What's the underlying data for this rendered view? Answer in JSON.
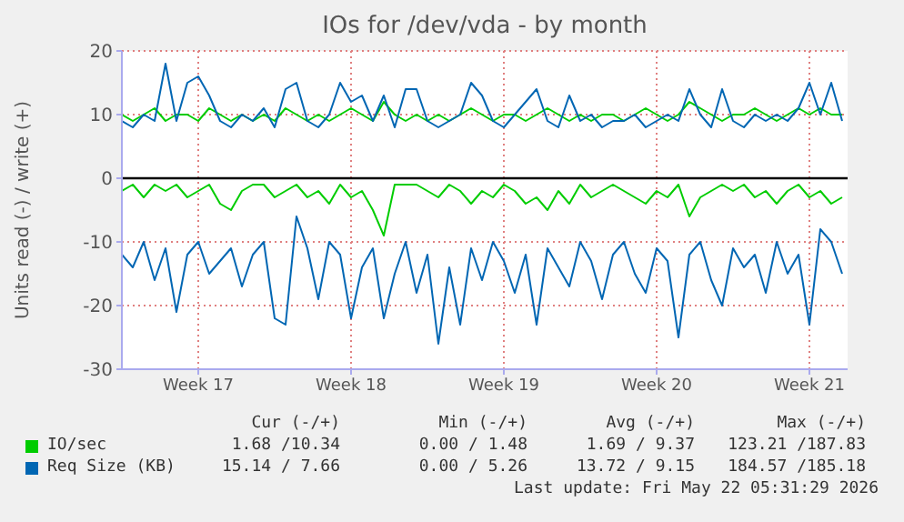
{
  "chart_data": {
    "type": "line",
    "title": "IOs for /dev/vda - by month",
    "ylabel": "Units read (-) / write (+)",
    "categories": [
      null,
      null,
      null,
      null,
      null,
      null,
      null,
      "Week 17",
      null,
      null,
      null,
      null,
      null,
      null,
      null,
      null,
      null,
      null,
      null,
      null,
      null,
      "Week 18",
      null,
      null,
      null,
      null,
      null,
      null,
      null,
      null,
      null,
      null,
      null,
      null,
      null,
      "Week 19",
      null,
      null,
      null,
      null,
      null,
      null,
      null,
      null,
      null,
      null,
      null,
      null,
      null,
      "Week 20",
      null,
      null,
      null,
      null,
      null,
      null,
      null,
      null,
      null,
      null,
      null,
      null,
      null,
      "Week 21",
      null,
      null,
      null
    ],
    "ylim": [
      -30,
      20
    ],
    "yticks": [
      -30,
      -20,
      -10,
      0,
      10,
      20
    ],
    "grid": true,
    "legend": "bottom",
    "marker": "none",
    "line_style": "solid",
    "ref_lines": [
      {
        "axis": "y",
        "value": 0,
        "color": "#000000"
      }
    ],
    "series": [
      {
        "name": "IO/sec",
        "color": "#00cc00",
        "values": [
          10,
          9,
          10,
          11,
          9,
          10,
          10,
          9,
          11,
          10,
          9,
          10,
          9,
          10,
          9,
          11,
          10,
          9,
          10,
          9,
          10,
          11,
          10,
          9,
          12,
          10,
          9,
          10,
          9,
          10,
          9,
          10,
          11,
          10,
          9,
          10,
          10,
          9,
          10,
          11,
          10,
          9,
          10,
          9,
          10,
          10,
          9,
          10,
          11,
          10,
          9,
          10,
          12,
          11,
          10,
          9,
          10,
          10,
          11,
          10,
          9,
          10,
          11,
          10,
          11,
          10,
          10
        ]
      },
      {
        "color": "#00cc00",
        "values": [
          -2,
          -1,
          -3,
          -1,
          -2,
          -1,
          -3,
          -2,
          -1,
          -4,
          -5,
          -2,
          -1,
          -1,
          -3,
          -2,
          -1,
          -3,
          -2,
          -4,
          -1,
          -3,
          -2,
          -5,
          -9,
          -1,
          -1,
          -1,
          -2,
          -3,
          -1,
          -2,
          -4,
          -2,
          -3,
          -1,
          -2,
          -4,
          -3,
          -5,
          -2,
          -4,
          -1,
          -3,
          -2,
          -1,
          -2,
          -3,
          -4,
          -2,
          -3,
          -1,
          -6,
          -3,
          -2,
          -1,
          -2,
          -1,
          -3,
          -2,
          -4,
          -2,
          -1,
          -3,
          -2,
          -4,
          -3
        ]
      },
      {
        "name": "Req Size (KB)",
        "color": "#0066b3",
        "values": [
          9,
          8,
          10,
          9,
          18,
          9,
          15,
          16,
          13,
          9,
          8,
          10,
          9,
          11,
          8,
          14,
          15,
          9,
          8,
          10,
          15,
          12,
          13,
          9,
          13,
          8,
          14,
          14,
          9,
          8,
          9,
          10,
          15,
          13,
          9,
          8,
          10,
          12,
          14,
          9,
          8,
          13,
          9,
          10,
          8,
          9,
          9,
          10,
          8,
          9,
          10,
          9,
          14,
          10,
          8,
          14,
          9,
          8,
          10,
          9,
          10,
          9,
          11,
          15,
          10,
          15,
          9
        ]
      },
      {
        "color": "#0066b3",
        "values": [
          -12,
          -14,
          -10,
          -16,
          -11,
          -21,
          -12,
          -10,
          -15,
          -13,
          -11,
          -17,
          -12,
          -10,
          -22,
          -23,
          -6,
          -11,
          -19,
          -10,
          -12,
          -22,
          -14,
          -11,
          -22,
          -15,
          -10,
          -18,
          -12,
          -26,
          -14,
          -23,
          -11,
          -16,
          -10,
          -13,
          -18,
          -12,
          -23,
          -11,
          -14,
          -17,
          -10,
          -13,
          -19,
          -12,
          -10,
          -15,
          -18,
          -11,
          -13,
          -25,
          -12,
          -10,
          -16,
          -20,
          -11,
          -14,
          -12,
          -18,
          -10,
          -15,
          -12,
          -23,
          -8,
          -10,
          -15
        ]
      }
    ],
    "annotations": [
      "Cur (-/+)",
      "Min (-/+)",
      "Avg (-/+)",
      "Max (-/+)",
      "1.68 /10.34",
      "0.00 / 1.48",
      "1.69 / 9.37",
      "123.21 /187.83",
      "15.14 / 7.66",
      "0.00 / 5.26",
      "13.72 / 9.15",
      "184.57 /185.18",
      "Last update: Fri May 22 05:31:29 2026"
    ]
  }
}
